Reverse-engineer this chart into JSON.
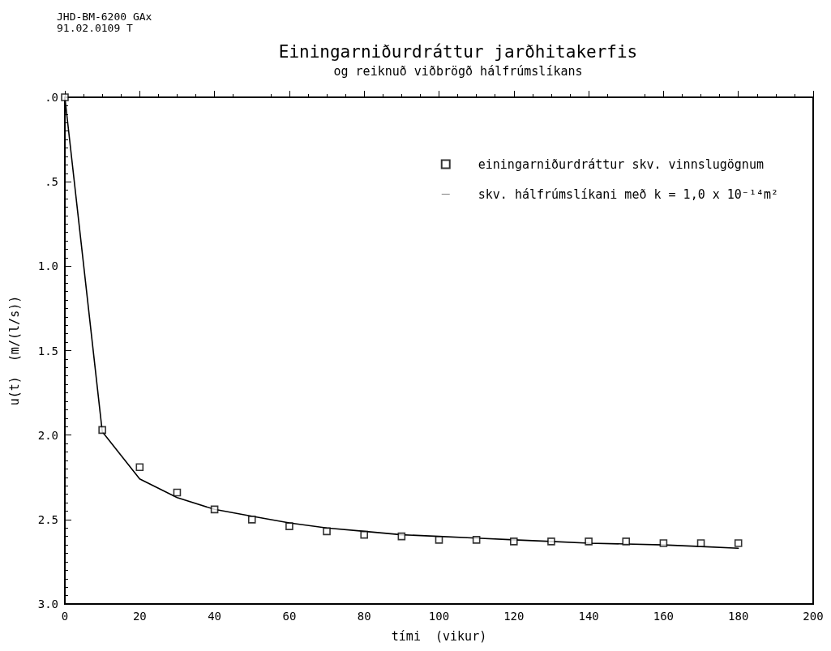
{
  "chart_data": {
    "type": "scatter",
    "title": "Einingarniðurdráttur jarðhitakerfis",
    "subtitle": "og reiknuð viðbrögð hálfrúmslíkans",
    "xlabel": "tími  (vikur)",
    "ylabel": "u(t)  (m/(l/s))",
    "annotations": [
      "JHD-BM-6200 GAx",
      "91.02.0109  T"
    ],
    "x": [
      0,
      10,
      20,
      30,
      40,
      50,
      60,
      70,
      80,
      90,
      100,
      110,
      120,
      130,
      140,
      150,
      160,
      170,
      180
    ],
    "series": [
      {
        "name": "einingarniðurdráttur skv. vinnslugögnum",
        "marker": "square",
        "color": "#000000",
        "values": [
          0,
          1.97,
          2.19,
          2.34,
          2.44,
          2.5,
          2.54,
          2.57,
          2.59,
          2.6,
          2.62,
          2.62,
          2.63,
          2.63,
          2.63,
          2.63,
          2.64,
          2.64,
          2.64
        ]
      },
      {
        "name": "skv. hálfrúmslíkani með k = 1,0 x 10⁻¹⁴m²",
        "type": "line",
        "marker": "none",
        "line_style": "solid",
        "color": "#000000",
        "values": [
          0,
          1.98,
          2.26,
          2.37,
          2.44,
          2.48,
          2.52,
          2.55,
          2.57,
          2.59,
          2.6,
          2.61,
          2.62,
          2.63,
          2.64,
          2.645,
          2.65,
          2.66,
          2.67
        ]
      }
    ],
    "xlim": [
      0,
      200
    ],
    "xticks": [
      0,
      20,
      40,
      60,
      80,
      100,
      120,
      140,
      160,
      180,
      200
    ],
    "ylim": [
      3.0,
      0
    ],
    "yticks": [
      {
        "value": 0,
        "label": ".0"
      },
      {
        "value": 0.5,
        "label": ".5"
      },
      {
        "value": 1.0,
        "label": "1.0"
      },
      {
        "value": 1.5,
        "label": "1.5"
      },
      {
        "value": 2.0,
        "label": "2.0"
      },
      {
        "value": 2.5,
        "label": "2.5"
      },
      {
        "value": 3.0,
        "label": "3.0"
      }
    ],
    "grid": false,
    "legend": "top right"
  }
}
